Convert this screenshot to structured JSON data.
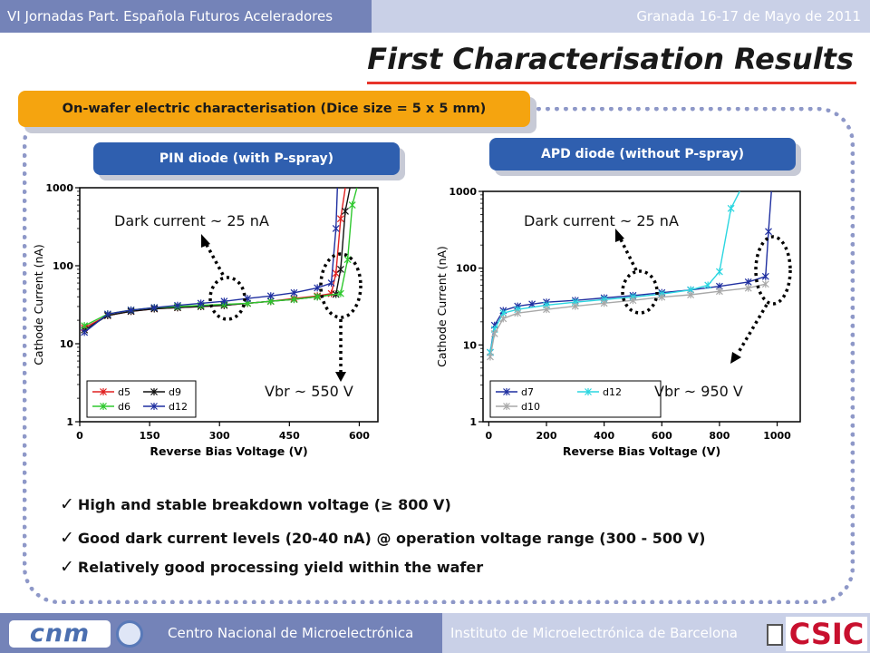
{
  "header": {
    "left_text": "VI Jornadas Part. Española Futuros Aceleradores",
    "right_text": "Granada 16-17 de Mayo de 2011",
    "title": "First Characterisation Results",
    "accent_color": "#e8342a"
  },
  "section_label": "On-wafer electric characterisation (Dice size = 5 x 5 mm)",
  "panels": {
    "pin": {
      "label": "PIN diode (with P-spray)",
      "dark_annotation": "Dark current ~ 25 nA",
      "vbr_annotation": "Vbr ~ 550 V"
    },
    "apd": {
      "label": "APD diode (without P-spray)",
      "dark_annotation": "Dark current ~ 25 nA",
      "vbr_annotation": "Vbr ~ 950 V"
    }
  },
  "bullets": [
    "High and stable breakdown voltage (≥ 800 V)",
    "Good dark current levels (20-40 nA) @ operation voltage range (300 - 500 V)",
    "Relatively good processing yield within the wafer"
  ],
  "footer": {
    "center_text": "Centro Nacional de Microelectrónica",
    "right_text": "Instituto de Microelectrónica de Barcelona",
    "cnm_logo_text": "cnm",
    "csic_logo_text": "CSIC"
  },
  "chart_data": [
    {
      "type": "line",
      "title": "",
      "xlabel": "Reverse Bias Voltage (V)",
      "ylabel": "Cathode Current (nA)",
      "xlim": [
        0,
        640
      ],
      "ylim": [
        1,
        1000
      ],
      "yscale": "log",
      "xticks": [
        0,
        150,
        300,
        450,
        600
      ],
      "yticks": [
        1,
        10,
        100,
        1000
      ],
      "legend_position": "bottom-left",
      "series": [
        {
          "name": "d5",
          "color": "#e02020",
          "x": [
            10,
            60,
            110,
            160,
            210,
            260,
            310,
            360,
            410,
            460,
            510,
            540,
            550,
            560,
            570
          ],
          "y": [
            16,
            23,
            26,
            28,
            29,
            30,
            31,
            33,
            35,
            38,
            41,
            44,
            80,
            400,
            1000
          ]
        },
        {
          "name": "d9",
          "color": "#111111",
          "x": [
            10,
            60,
            110,
            160,
            210,
            260,
            310,
            360,
            410,
            460,
            510,
            550,
            560,
            570,
            580
          ],
          "y": [
            15,
            23,
            26,
            28,
            29,
            30,
            31,
            33,
            35,
            37,
            40,
            43,
            90,
            500,
            1000
          ]
        },
        {
          "name": "d6",
          "color": "#2ec82e",
          "x": [
            10,
            60,
            110,
            160,
            210,
            260,
            310,
            360,
            410,
            460,
            510,
            560,
            575,
            585,
            595
          ],
          "y": [
            17,
            24,
            27,
            29,
            30,
            31,
            32,
            33,
            35,
            37,
            40,
            44,
            120,
            600,
            1000
          ]
        },
        {
          "name": "d12",
          "color": "#1f2fa0",
          "x": [
            10,
            60,
            110,
            160,
            210,
            260,
            310,
            360,
            410,
            460,
            510,
            540,
            550,
            553
          ],
          "y": [
            14,
            24,
            27,
            29,
            31,
            33,
            35,
            38,
            41,
            45,
            52,
            60,
            300,
            1000
          ]
        }
      ]
    },
    {
      "type": "line",
      "title": "",
      "xlabel": "Reverse Bias Voltage (V)",
      "ylabel": "Cathode Current (nA)",
      "xlim": [
        -20,
        1080
      ],
      "ylim": [
        1,
        1000
      ],
      "yscale": "log",
      "xticks": [
        0,
        200,
        400,
        600,
        800,
        1000
      ],
      "yticks": [
        1,
        10,
        100,
        1000
      ],
      "legend_position": "bottom-left",
      "series": [
        {
          "name": "d7",
          "color": "#1f2fa0",
          "x": [
            5,
            20,
            50,
            100,
            150,
            200,
            300,
            400,
            500,
            600,
            700,
            800,
            900,
            960,
            970,
            980
          ],
          "y": [
            8,
            18,
            28,
            32,
            34,
            36,
            38,
            41,
            44,
            48,
            52,
            58,
            66,
            78,
            300,
            1000
          ]
        },
        {
          "name": "d12",
          "color": "#2ad6e0",
          "x": [
            5,
            20,
            50,
            100,
            200,
            300,
            400,
            500,
            600,
            700,
            760,
            800,
            840,
            870
          ],
          "y": [
            8,
            16,
            26,
            29,
            33,
            36,
            39,
            42,
            46,
            52,
            60,
            90,
            600,
            1000
          ]
        },
        {
          "name": "d10",
          "color": "#a8a8a8",
          "x": [
            5,
            20,
            50,
            100,
            200,
            300,
            400,
            500,
            600,
            700,
            800,
            900,
            960
          ],
          "y": [
            7,
            14,
            22,
            26,
            29,
            32,
            35,
            38,
            42,
            45,
            50,
            55,
            62
          ]
        }
      ]
    }
  ]
}
